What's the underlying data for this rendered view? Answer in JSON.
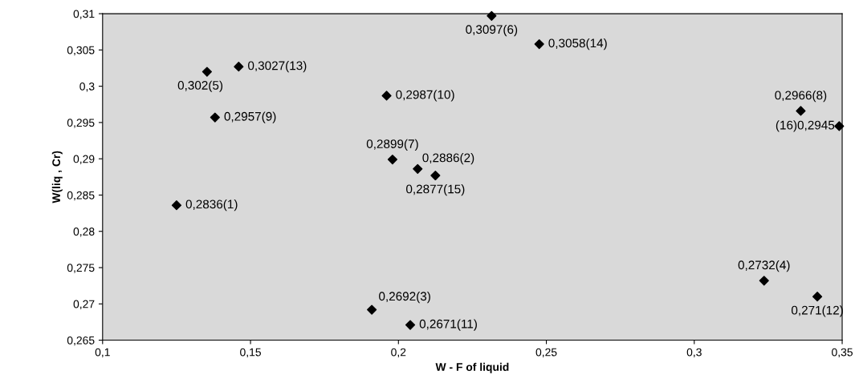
{
  "chart_data": {
    "type": "scatter",
    "xlabel": "W - F of liquid",
    "ylabel": "W(liq , Cr)",
    "x": [
      0.125,
      0.2065,
      0.191,
      0.3236,
      0.1353,
      0.2315,
      0.198,
      0.336,
      0.138,
      0.196,
      0.204,
      0.3416,
      0.146,
      0.2476,
      0.2125,
      0.349
    ],
    "series": [
      {
        "color": "#000000",
        "values": [
          0.2836,
          0.2886,
          0.2692,
          0.2732,
          0.302,
          0.3097,
          0.2899,
          0.2966,
          0.2957,
          0.2987,
          0.2671,
          0.271,
          0.3027,
          0.3058,
          0.2877,
          0.2945
        ],
        "value_labels": [
          "0,2836(1)",
          "0,2886(2)",
          "0,2692(3)",
          "0,2732(4)",
          "0,302(5)",
          "0,3097(6)",
          "0,2899(7)",
          "0,2966(8)",
          "0,2957(9)",
          "0,2987(10)",
          "0,2671(11)",
          "0,271(12)",
          "0,3027(13)",
          "0,3058(14)",
          "0,2877(15)",
          "(16)0,2945"
        ]
      }
    ],
    "xlim": [
      0.1,
      0.35
    ],
    "ylim": [
      0.265,
      0.31
    ],
    "xticks": [
      {
        "value": 0.1,
        "label": "0,1"
      },
      {
        "value": 0.15,
        "label": "0,15"
      },
      {
        "value": 0.2,
        "label": "0,2"
      },
      {
        "value": 0.25,
        "label": "0,25"
      },
      {
        "value": 0.3,
        "label": "0,3"
      },
      {
        "value": 0.35,
        "label": "0,35"
      }
    ],
    "yticks": [
      {
        "value": 0.265,
        "label": "0,265"
      },
      {
        "value": 0.27,
        "label": "0,27"
      },
      {
        "value": 0.275,
        "label": "0,275"
      },
      {
        "value": 0.28,
        "label": "0,28"
      },
      {
        "value": 0.285,
        "label": "0,285"
      },
      {
        "value": 0.29,
        "label": "0,29"
      },
      {
        "value": 0.295,
        "label": "0,295"
      },
      {
        "value": 0.3,
        "label": "0,3"
      },
      {
        "value": 0.305,
        "label": "0,305"
      },
      {
        "value": 0.31,
        "label": "0,31"
      }
    ],
    "marker": "diamond",
    "grid": false,
    "legend": false
  }
}
